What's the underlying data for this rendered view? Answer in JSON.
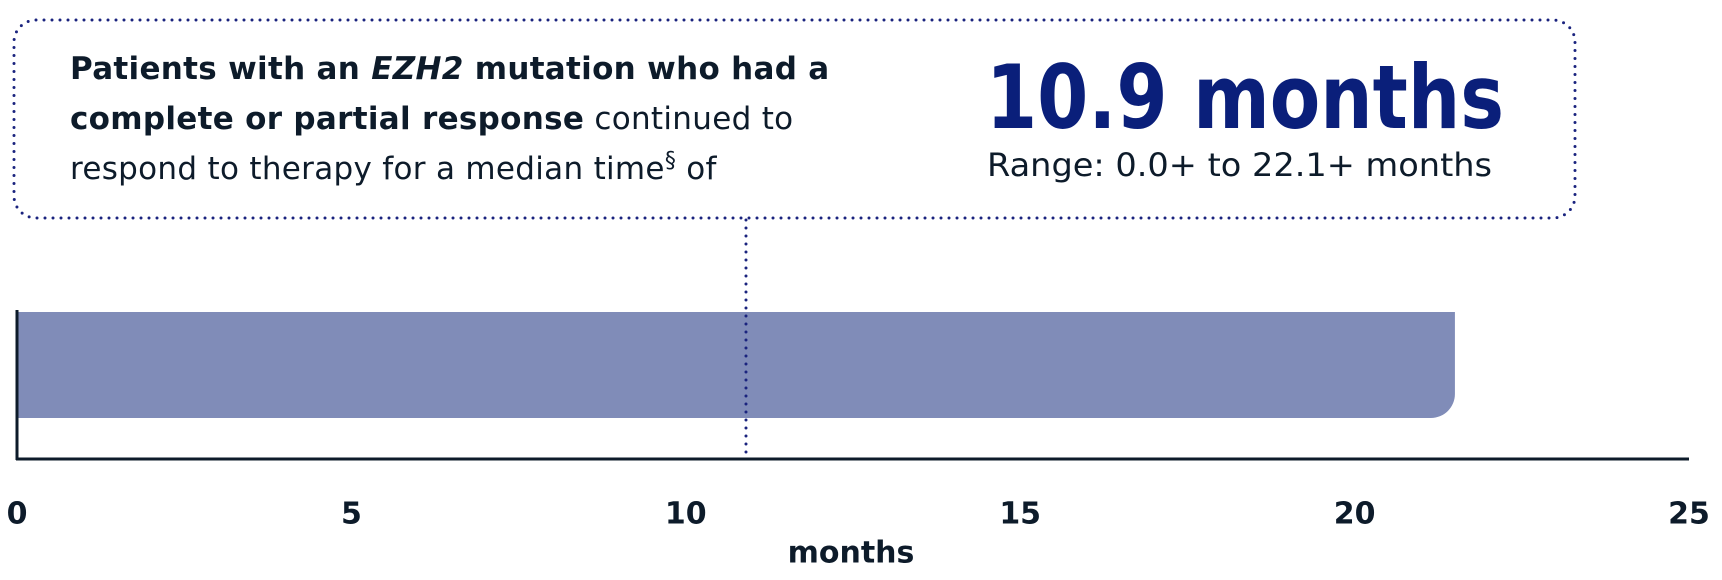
{
  "chart_data": {
    "type": "bar",
    "orientation": "horizontal",
    "callout": {
      "parts": [
        {
          "text": "Patients with an ",
          "style": "bold"
        },
        {
          "text": "EZH2",
          "style": "bold-italic"
        },
        {
          "text": " mutation who had a complete or partial response",
          "style": "bold"
        },
        {
          "text": " continued to respond to therapy for a median time",
          "style": "normal"
        },
        {
          "text": "§",
          "style": "sup"
        },
        {
          "text": " of",
          "style": "normal"
        }
      ]
    },
    "median": 10.9,
    "median_label": "10.9 months",
    "range_label": "Range: 0.0+ to 22.1+ months",
    "values": [
      21.5
    ],
    "color": "#808cb8",
    "xlim": [
      0,
      25
    ],
    "xticks": [
      0,
      5,
      10,
      15,
      20,
      25
    ],
    "xlabel": "months"
  }
}
